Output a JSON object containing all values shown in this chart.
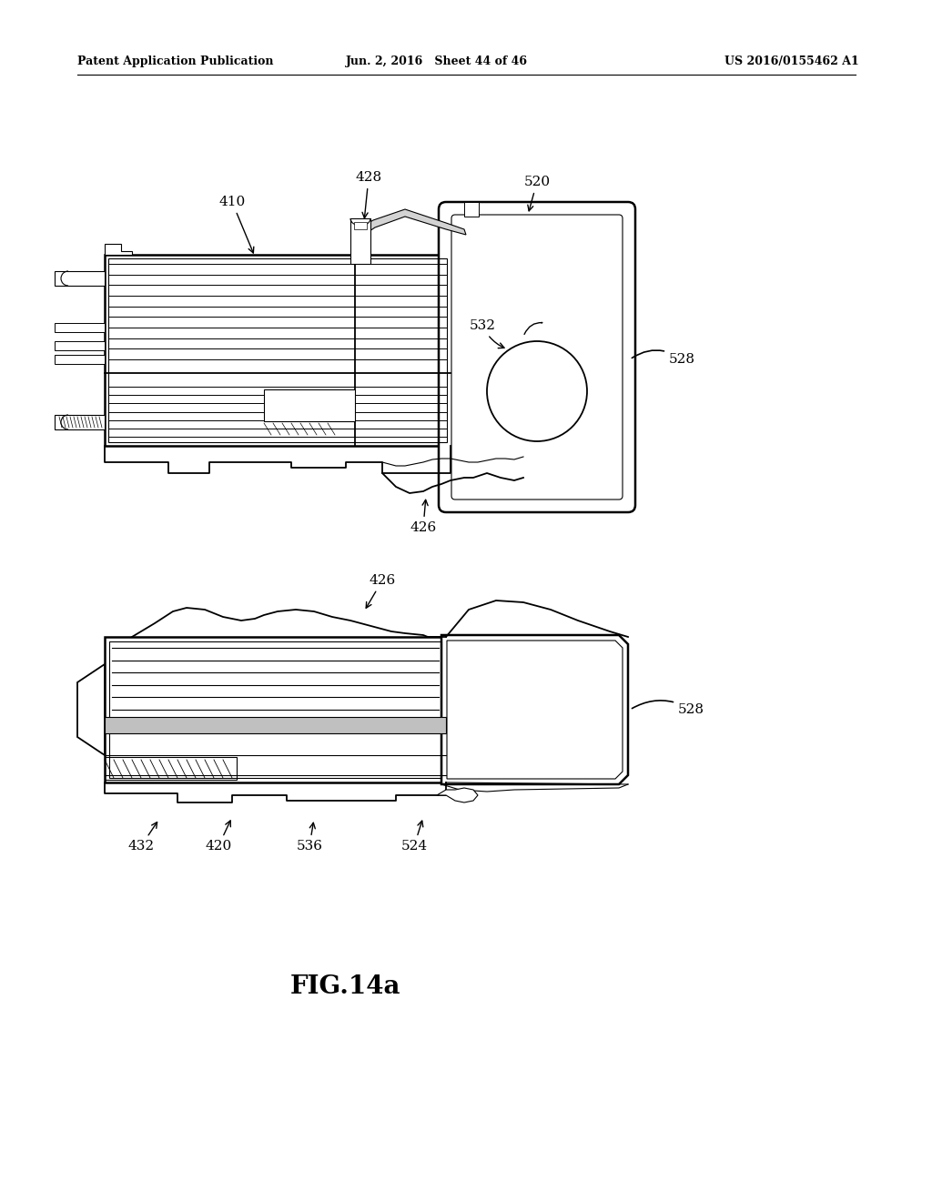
{
  "background_color": "#ffffff",
  "header_left": "Patent Application Publication",
  "header_center": "Jun. 2, 2016   Sheet 44 of 46",
  "header_right": "US 2016/0155462 A1",
  "figure_label": "FIG.14a"
}
